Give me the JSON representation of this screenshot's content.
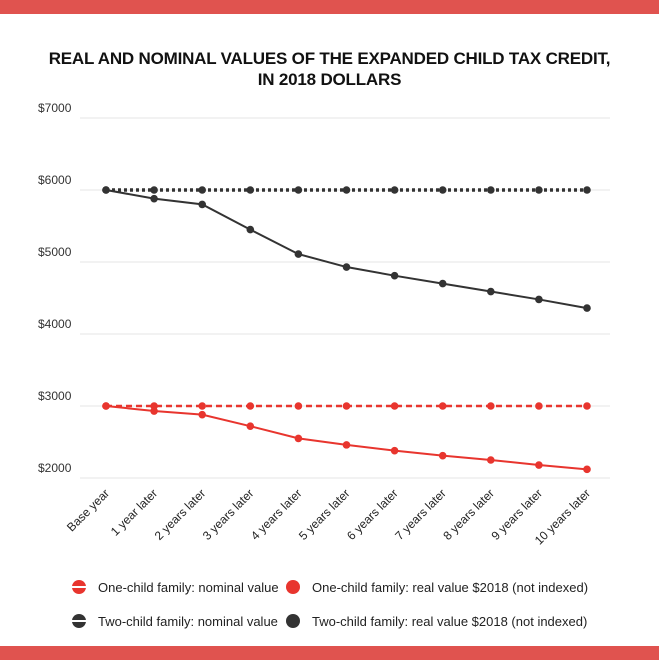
{
  "colors": {
    "band": "#e0534f",
    "one_child": "#e8352e",
    "two_child": "#333333",
    "grid": "#e6e6e6"
  },
  "chart_data": {
    "type": "line",
    "title": "REAL AND NOMINAL VALUES OF THE EXPANDED CHILD TAX CREDIT,",
    "title_line2": "IN 2018 DOLLARS",
    "xlabel": "",
    "ylabel": "",
    "categories": [
      "Base year",
      "1 year later",
      "2 years later",
      "3 years later",
      "4 years later",
      "5 years later",
      "6 years later",
      "7 years later",
      "8 years later",
      "9 years later",
      "10 years later"
    ],
    "y_ticks": [
      "$7000",
      "$6000",
      "$5000",
      "$4000",
      "$3000",
      "$2000"
    ],
    "ylim": [
      2000,
      7000
    ],
    "grid": true,
    "legend_position": "bottom",
    "series": [
      {
        "name": "One-child family: nominal value",
        "style": "dashed",
        "color_key": "one_child",
        "values": [
          3000,
          3000,
          3000,
          3000,
          3000,
          3000,
          3000,
          3000,
          3000,
          3000,
          3000
        ]
      },
      {
        "name": "One-child family: real value $2018 (not indexed)",
        "style": "solid",
        "color_key": "one_child",
        "values": [
          3000,
          2930,
          2880,
          2720,
          2550,
          2460,
          2380,
          2310,
          2250,
          2180,
          2120
        ]
      },
      {
        "name": "Two-child family: nominal value",
        "style": "dotted",
        "color_key": "two_child",
        "values": [
          6000,
          6000,
          6000,
          6000,
          6000,
          6000,
          6000,
          6000,
          6000,
          6000,
          6000
        ]
      },
      {
        "name": "Two-child family: real value $2018 (not indexed)",
        "style": "solid",
        "color_key": "two_child",
        "values": [
          6000,
          5880,
          5800,
          5450,
          5110,
          4930,
          4810,
          4700,
          4590,
          4480,
          4360
        ]
      }
    ]
  },
  "legend": {
    "one_nominal": "One-child family: nominal value",
    "one_real": "One-child family: real value $2018 (not indexed)",
    "two_nominal": "Two-child family: nominal value",
    "two_real": "Two-child family: real value $2018 (not indexed)"
  }
}
